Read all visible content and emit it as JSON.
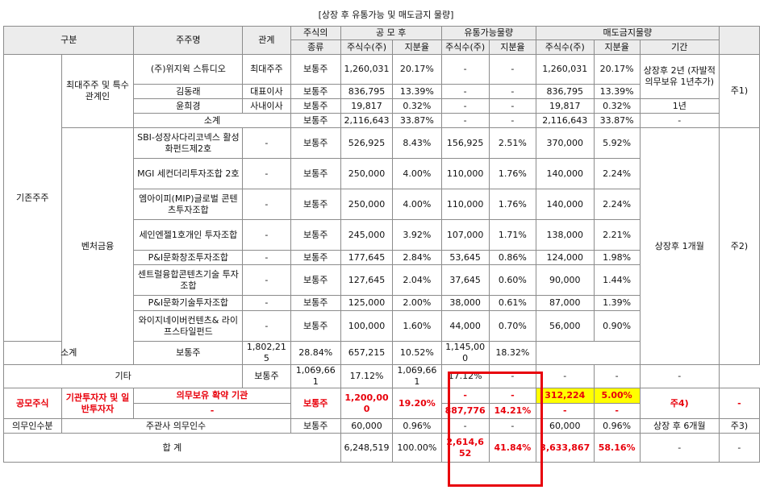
{
  "title": "[상장 후 유통가능 및 매도금지 물량]",
  "headers": {
    "category": "구분",
    "holder": "주주명",
    "relation": "관계",
    "stock_type_1": "주식의",
    "stock_type_2": "종류",
    "after_ipo": "공 모 후",
    "tradable": "유통가능물량",
    "lockup": "매도금지물량",
    "shares": "주식수(주)",
    "ratio": "지분율",
    "period": "기간"
  },
  "labels": {
    "existing": "기존주주",
    "largest_related": "최대주주 및 특수관계인",
    "venture": "벤처금융",
    "subtotal": "소계",
    "other": "기타",
    "offering": "공모주식",
    "inst_general": "기관투자자 및 일반투자자",
    "lockup_inst": "의무보유 확약 기관",
    "dash": "-",
    "underwriter_cat": "의무인수분",
    "underwriter_name": "주관사 의무인수",
    "total": "합 계"
  },
  "rows": {
    "wizwig": {
      "name": "(주)위지윅 스튜디오",
      "relation": "최대주주",
      "type": "보통주",
      "shares": "1,260,031",
      "ratio": "20.17%",
      "t_shares": "-",
      "t_ratio": "-",
      "l_shares": "1,260,031",
      "l_ratio": "20.17%"
    },
    "kim": {
      "name": "김동래",
      "relation": "대표이사",
      "type": "보통주",
      "shares": "836,795",
      "ratio": "13.39%",
      "t_shares": "-",
      "t_ratio": "-",
      "l_shares": "836,795",
      "l_ratio": "13.39%"
    },
    "yoon": {
      "name": "윤희경",
      "relation": "사내이사",
      "type": "보통주",
      "shares": "19,817",
      "ratio": "0.32%",
      "t_shares": "-",
      "t_ratio": "-",
      "l_shares": "19,817",
      "l_ratio": "0.32%"
    },
    "sub1": {
      "type": "보통주",
      "shares": "2,116,643",
      "ratio": "33.87%",
      "t_shares": "-",
      "t_ratio": "-",
      "l_shares": "2,116,643",
      "l_ratio": "33.87%",
      "period": "-"
    },
    "v1": {
      "name": "SBI-성장사다리코넥스 활성화펀드제2호",
      "relation": "-",
      "type": "보통주",
      "shares": "526,925",
      "ratio": "8.43%",
      "t_shares": "156,925",
      "t_ratio": "2.51%",
      "l_shares": "370,000",
      "l_ratio": "5.92%"
    },
    "v2": {
      "name": "MGI 세컨더리투자조합 2호",
      "relation": "-",
      "type": "보통주",
      "shares": "250,000",
      "ratio": "4.00%",
      "t_shares": "110,000",
      "t_ratio": "1.76%",
      "l_shares": "140,000",
      "l_ratio": "2.24%"
    },
    "v3": {
      "name": "엠아이피(MIP)글로벌 콘텐츠투자조합",
      "relation": "-",
      "type": "보통주",
      "shares": "250,000",
      "ratio": "4.00%",
      "t_shares": "110,000",
      "t_ratio": "1.76%",
      "l_shares": "140,000",
      "l_ratio": "2.24%"
    },
    "v4": {
      "name": "세인엔젤1호개인 투자조합",
      "relation": "-",
      "type": "보통주",
      "shares": "245,000",
      "ratio": "3.92%",
      "t_shares": "107,000",
      "t_ratio": "1.71%",
      "l_shares": "138,000",
      "l_ratio": "2.21%"
    },
    "v5": {
      "name": "P&I문화창조투자조합",
      "relation": "-",
      "type": "보통주",
      "shares": "177,645",
      "ratio": "2.84%",
      "t_shares": "53,645",
      "t_ratio": "0.86%",
      "l_shares": "124,000",
      "l_ratio": "1.98%"
    },
    "v6": {
      "name": "센트럴융합콘텐츠기술 투자조합",
      "relation": "-",
      "type": "보통주",
      "shares": "127,645",
      "ratio": "2.04%",
      "t_shares": "37,645",
      "t_ratio": "0.60%",
      "l_shares": "90,000",
      "l_ratio": "1.44%"
    },
    "v7": {
      "name": "P&I문화기술투자조합",
      "relation": "-",
      "type": "보통주",
      "shares": "125,000",
      "ratio": "2.00%",
      "t_shares": "38,000",
      "t_ratio": "0.61%",
      "l_shares": "87,000",
      "l_ratio": "1.39%"
    },
    "v8": {
      "name": "와이지네이버컨텐츠& 라이프스타일펀드",
      "relation": "-",
      "type": "보통주",
      "shares": "100,000",
      "ratio": "1.60%",
      "t_shares": "44,000",
      "t_ratio": "0.70%",
      "l_shares": "56,000",
      "l_ratio": "0.90%"
    },
    "sub2": {
      "type": "보통주",
      "shares": "1,802,215",
      "ratio": "28.84%",
      "t_shares": "657,215",
      "t_ratio": "10.52%",
      "l_shares": "1,145,000",
      "l_ratio": "18.32%"
    },
    "other": {
      "type": "보통주",
      "shares": "1,069,661",
      "ratio": "17.12%",
      "t_shares": "1,069,661",
      "t_ratio": "17.12%",
      "l_shares": "-",
      "l_ratio": "-",
      "period": "-",
      "note": "-"
    },
    "offer": {
      "type": "보통주",
      "shares": "1,200,000",
      "ratio": "19.20%",
      "t_shares_a": "-",
      "t_ratio_a": "-",
      "l_shares": "312,224",
      "l_ratio": "5.00%",
      "note": "주4)",
      "extra": "-",
      "t_shares_b": "887,776",
      "t_ratio_b": "14.21%",
      "l_shares_b": "-",
      "l_ratio_b": "-"
    },
    "under": {
      "type": "보통주",
      "shares": "60,000",
      "ratio": "0.96%",
      "t_shares": "-",
      "t_ratio": "-",
      "l_shares": "60,000",
      "l_ratio": "0.96%",
      "period": "상장 후 6개월",
      "note": "주3)"
    },
    "total": {
      "shares": "6,248,519",
      "ratio": "100.00%",
      "t_shares": "2,614,652",
      "t_ratio": "41.84%",
      "l_shares": "3,633,867",
      "l_ratio": "58.16%",
      "period": "-",
      "note": "-"
    }
  },
  "periods": {
    "largest": "상장후 2년 (자발적의무보유 1년추가)",
    "yoon": "1년",
    "venture": "상장후 1개월"
  },
  "notes": {
    "n1": "주1)",
    "n2": "주2)"
  },
  "colors": {
    "highlight_red": "#e8000b",
    "highlight_yellow": "#ffff00",
    "header_bg": "#ececec"
  }
}
